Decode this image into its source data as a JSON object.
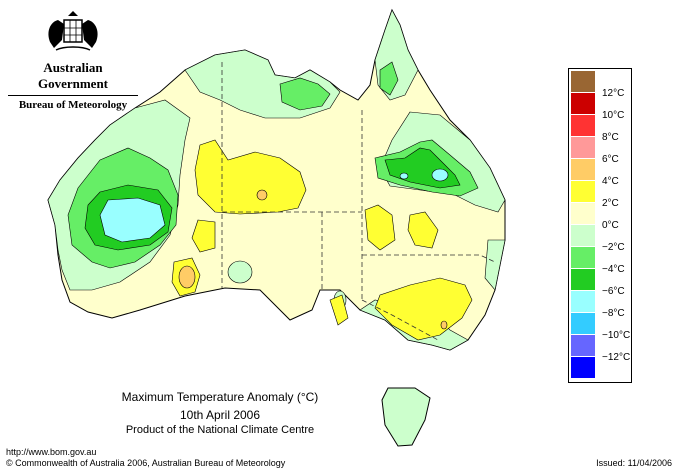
{
  "header": {
    "government": "Australian Government",
    "bureau": "Bureau of Meteorology",
    "crest_icon": "coat-of-arms-icon"
  },
  "map": {
    "title_line1": "Maximum Temperature Anomaly (°C)",
    "title_line2": "10th April 2006",
    "title_line3": "Product of the National Climate Centre",
    "land_color": "#ffffff",
    "border_color": "#000000"
  },
  "legend": {
    "colors": [
      "#996633",
      "#cc0000",
      "#ff3333",
      "#ff9999",
      "#ffcc66",
      "#ffff33",
      "#ffffcc",
      "#ccffcc",
      "#66ee66",
      "#22cc22",
      "#99ffff",
      "#33ccff",
      "#6666ff",
      "#0000ff"
    ],
    "labels": [
      "12°C",
      "10°C",
      "8°C",
      "6°C",
      "4°C",
      "2°C",
      "0°C",
      "−2°C",
      "−4°C",
      "−6°C",
      "−8°C",
      "−10°C",
      "−12°C"
    ]
  },
  "footer": {
    "url": "http://www.bom.gov.au",
    "copyright": "© Commonwealth of Australia 2006, Australian Bureau of Meteorology",
    "issued": "Issued: 11/04/2006"
  }
}
